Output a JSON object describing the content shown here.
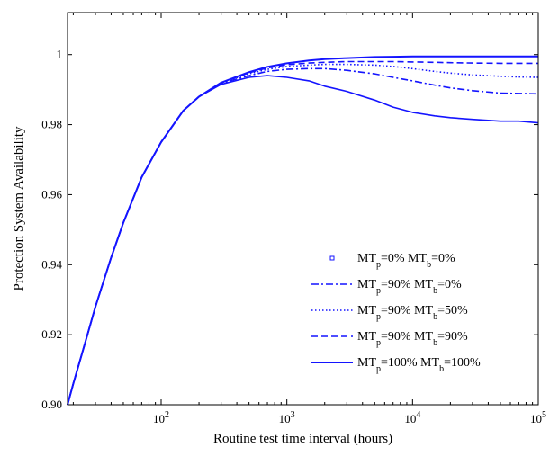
{
  "chart_data": {
    "type": "line",
    "title": "",
    "xlabel": "Routine test time interval (hours)",
    "ylabel": "Protection System Availability",
    "xscale": "log",
    "xlim": [
      18,
      100000
    ],
    "ylim": [
      0.9,
      1.012
    ],
    "grid": false,
    "legend_position": "lower-right",
    "x_ticks": [
      {
        "value": 100,
        "base": "10",
        "exp": "2"
      },
      {
        "value": 1000,
        "base": "10",
        "exp": "3"
      },
      {
        "value": 10000,
        "base": "10",
        "exp": "4"
      },
      {
        "value": 100000,
        "base": "10",
        "exp": "5"
      }
    ],
    "y_ticks": [
      {
        "value": 0.9,
        "label": "0.90"
      },
      {
        "value": 0.92,
        "label": "0.92"
      },
      {
        "value": 0.94,
        "label": "0.94"
      },
      {
        "value": 0.96,
        "label": "0.96"
      },
      {
        "value": 0.98,
        "label": "0.98"
      },
      {
        "value": 1.0,
        "label": "1"
      }
    ],
    "color": "#1414ff",
    "series": [
      {
        "name": "MTp=0% MTb=0%",
        "legend": [
          {
            "t": "MT"
          },
          {
            "t": "p",
            "sub": true
          },
          {
            "t": "=0%  MT"
          },
          {
            "t": "b",
            "sub": true
          },
          {
            "t": "=0%"
          }
        ],
        "style": "marker",
        "x": [
          18,
          20,
          25,
          30,
          40,
          50,
          70,
          100,
          150,
          200,
          300,
          500,
          700,
          1000,
          1500,
          2000,
          3000,
          5000,
          7000,
          10000,
          15000,
          20000,
          30000,
          50000,
          70000,
          100000
        ],
        "y": [
          0.9,
          0.906,
          0.918,
          0.928,
          0.942,
          0.952,
          0.965,
          0.975,
          0.984,
          0.988,
          0.9915,
          0.9935,
          0.994,
          0.9935,
          0.9925,
          0.991,
          0.9895,
          0.987,
          0.985,
          0.9835,
          0.9825,
          0.982,
          0.9815,
          0.981,
          0.981,
          0.9805
        ]
      },
      {
        "name": "MTp=90% MTb=0%",
        "legend": [
          {
            "t": "MT"
          },
          {
            "t": "p",
            "sub": true
          },
          {
            "t": "=90% MT"
          },
          {
            "t": "b",
            "sub": true
          },
          {
            "t": "=0%"
          }
        ],
        "style": "dashdot",
        "x": [
          18,
          20,
          25,
          30,
          40,
          50,
          70,
          100,
          150,
          200,
          300,
          500,
          700,
          1000,
          1500,
          2000,
          3000,
          5000,
          7000,
          10000,
          15000,
          20000,
          30000,
          50000,
          70000,
          100000
        ],
        "y": [
          0.9,
          0.906,
          0.918,
          0.928,
          0.942,
          0.952,
          0.965,
          0.975,
          0.984,
          0.988,
          0.9918,
          0.994,
          0.9952,
          0.9958,
          0.996,
          0.996,
          0.9955,
          0.9945,
          0.9935,
          0.9925,
          0.9913,
          0.9905,
          0.9897,
          0.989,
          0.9889,
          0.9888
        ]
      },
      {
        "name": "MTp=90% MTb=50%",
        "legend": [
          {
            "t": "MT"
          },
          {
            "t": "p",
            "sub": true
          },
          {
            "t": "=90% MT"
          },
          {
            "t": "b",
            "sub": true
          },
          {
            "t": "=50%"
          }
        ],
        "style": "dotted",
        "x": [
          18,
          20,
          25,
          30,
          40,
          50,
          70,
          100,
          150,
          200,
          300,
          500,
          700,
          1000,
          1500,
          2000,
          3000,
          5000,
          7000,
          10000,
          15000,
          20000,
          30000,
          50000,
          70000,
          100000
        ],
        "y": [
          0.9,
          0.906,
          0.918,
          0.928,
          0.942,
          0.952,
          0.965,
          0.975,
          0.984,
          0.988,
          0.992,
          0.9945,
          0.9958,
          0.9966,
          0.997,
          0.9972,
          0.9972,
          0.997,
          0.9966,
          0.996,
          0.9952,
          0.9947,
          0.9942,
          0.9938,
          0.9936,
          0.9935
        ]
      },
      {
        "name": "MTp=90% MTb=90%",
        "legend": [
          {
            "t": "MT"
          },
          {
            "t": "p",
            "sub": true
          },
          {
            "t": "=90%  MT"
          },
          {
            "t": "b",
            "sub": true
          },
          {
            "t": "=90%"
          }
        ],
        "style": "dashed",
        "x": [
          18,
          20,
          25,
          30,
          40,
          50,
          70,
          100,
          150,
          200,
          300,
          500,
          700,
          1000,
          1500,
          2000,
          3000,
          5000,
          7000,
          10000,
          15000,
          20000,
          30000,
          50000,
          70000,
          100000
        ],
        "y": [
          0.9,
          0.906,
          0.918,
          0.928,
          0.942,
          0.952,
          0.965,
          0.975,
          0.984,
          0.988,
          0.992,
          0.9948,
          0.9962,
          0.9971,
          0.9976,
          0.9978,
          0.998,
          0.998,
          0.998,
          0.9979,
          0.9978,
          0.9977,
          0.9976,
          0.9975,
          0.9975,
          0.9975
        ]
      },
      {
        "name": "MTp=100% MTb=100%",
        "legend": [
          {
            "t": "MT"
          },
          {
            "t": "p",
            "sub": true
          },
          {
            "t": "=100% MT"
          },
          {
            "t": "b",
            "sub": true
          },
          {
            "t": "=100%"
          }
        ],
        "style": "solid",
        "x": [
          18,
          20,
          25,
          30,
          40,
          50,
          70,
          100,
          150,
          200,
          300,
          500,
          700,
          1000,
          1500,
          2000,
          3000,
          5000,
          7000,
          10000,
          15000,
          20000,
          30000,
          50000,
          70000,
          100000
        ],
        "y": [
          0.9,
          0.906,
          0.918,
          0.928,
          0.942,
          0.952,
          0.965,
          0.975,
          0.984,
          0.988,
          0.992,
          0.995,
          0.9965,
          0.9975,
          0.9983,
          0.9987,
          0.999,
          0.9993,
          0.9994,
          0.9995,
          0.9995,
          0.9995,
          0.9995,
          0.9995,
          0.9995,
          0.9995
        ]
      }
    ]
  }
}
